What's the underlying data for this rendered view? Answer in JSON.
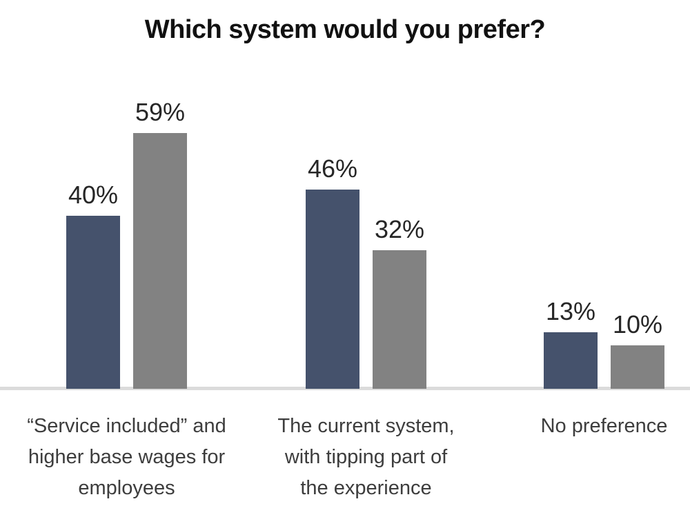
{
  "chart_data": {
    "type": "bar",
    "title": "Which system would you prefer?",
    "categories": [
      "“Service included” and higher base wages for employees",
      "The current system, with tipping part of the experience",
      "No preference"
    ],
    "category_lines": [
      [
        "“Service included” and",
        "higher base wages for",
        "employees"
      ],
      [
        "The current system,",
        "with tipping part of",
        "the experience"
      ],
      [
        "No preference"
      ]
    ],
    "series": [
      {
        "name": "dark-blue",
        "color": "#45526C",
        "values": [
          40,
          46,
          13
        ],
        "labels": [
          "40%",
          "46%",
          "13%"
        ]
      },
      {
        "name": "gray",
        "color": "#828282",
        "values": [
          59,
          32,
          10
        ],
        "labels": [
          "59%",
          "32%",
          "10%"
        ]
      }
    ],
    "unit": "%",
    "ylim": [
      0,
      75
    ],
    "grid": false,
    "legend": "none",
    "background": "#FFFFFF",
    "axis_line_color": "#DBDBDB",
    "title_color": "#111111",
    "value_label_color": "#262626",
    "category_label_color": "#3D3D3D"
  }
}
